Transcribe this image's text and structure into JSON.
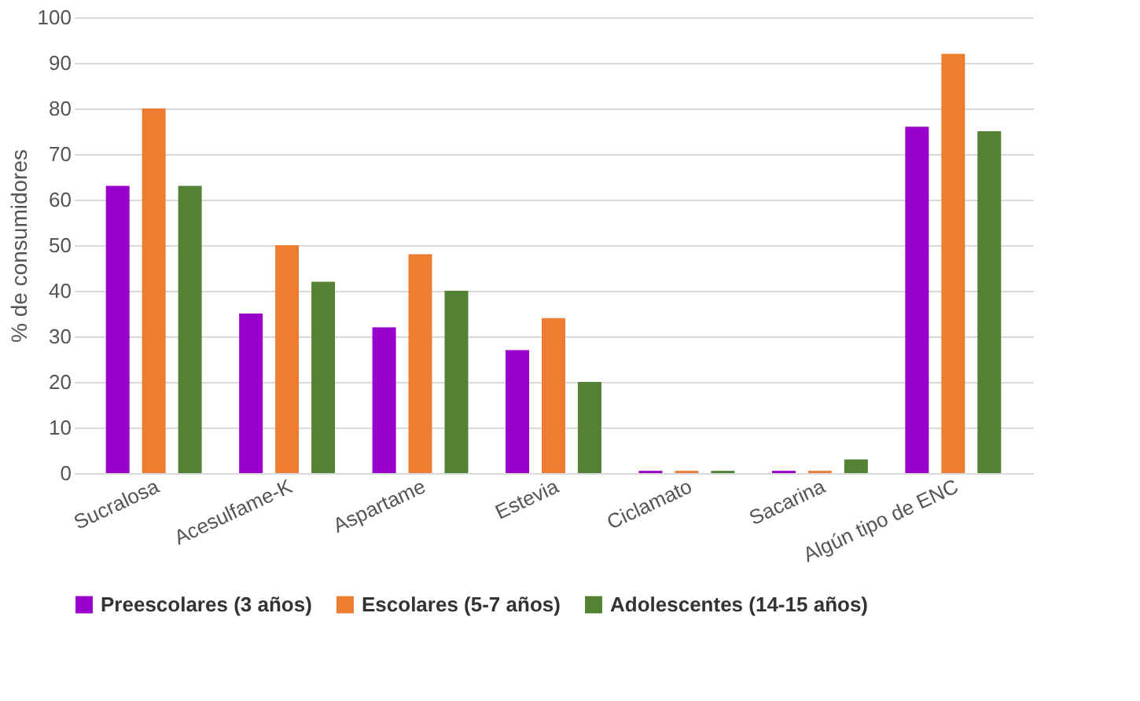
{
  "chart_data": {
    "type": "bar",
    "ylabel": "% de consumidores",
    "categories": [
      "Sucralosa",
      "Acesulfame-K",
      "Aspartame",
      "Estevia",
      "Ciclamato",
      "Sacarina",
      "Algún tipo de ENC"
    ],
    "series": [
      {
        "name": "Preescolares (3 años)",
        "color": "#9900cc",
        "values": [
          63,
          35,
          32,
          27,
          0.5,
          0.5,
          76
        ]
      },
      {
        "name": "Escolares (5-7 años)",
        "color": "#ed7d31",
        "values": [
          80,
          50,
          48,
          34,
          0.5,
          0.5,
          92
        ]
      },
      {
        "name": "Adolescentes (14-15 años)",
        "color": "#548235",
        "values": [
          63,
          42,
          40,
          20,
          0.5,
          3,
          75
        ]
      }
    ],
    "ylim": [
      0,
      100
    ],
    "yticks": [
      0,
      10,
      20,
      30,
      40,
      50,
      60,
      70,
      80,
      90,
      100
    ],
    "grid": "y",
    "legend": "bottom"
  }
}
